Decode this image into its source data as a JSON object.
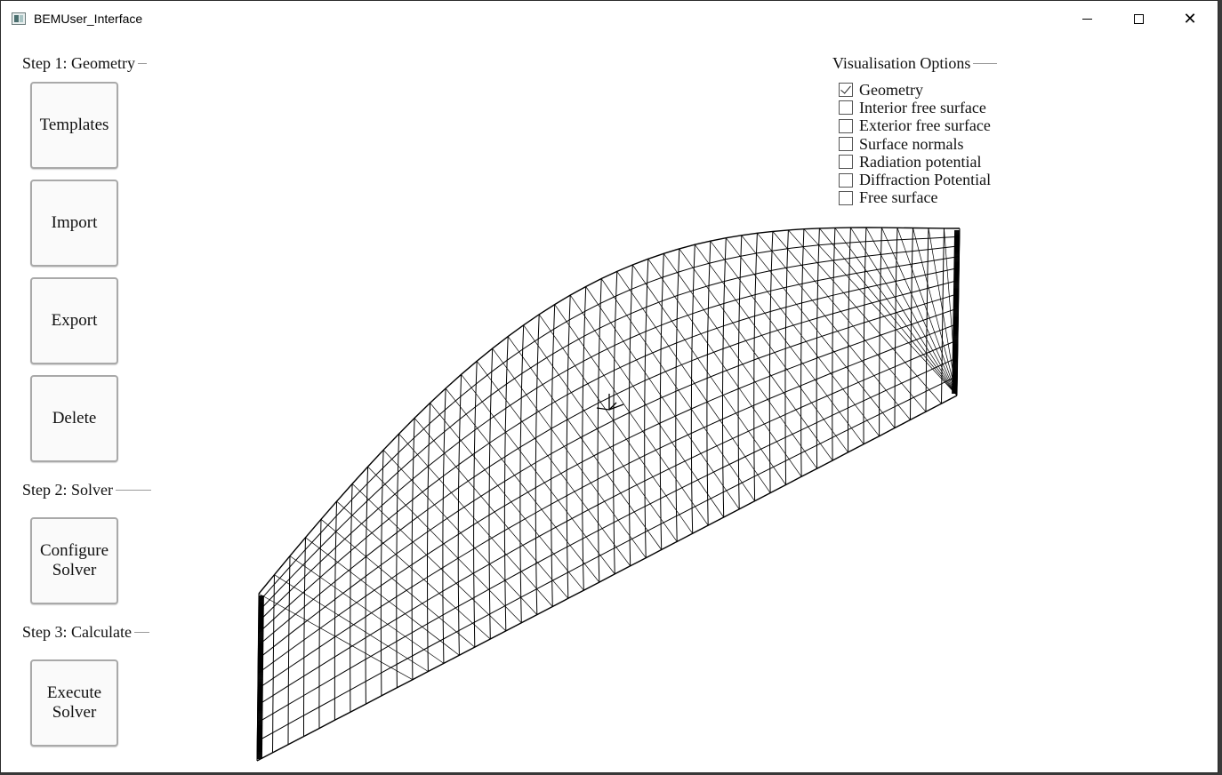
{
  "window": {
    "title": "BEMUser_Interface",
    "icon": "app-window-icon",
    "controls": {
      "minimize": "minimize-icon",
      "maximize": "maximize-icon",
      "close": "close-icon"
    }
  },
  "step1": {
    "header": "Step 1: Geometry",
    "buttons": [
      {
        "label": "Templates"
      },
      {
        "label": "Import"
      },
      {
        "label": "Export"
      },
      {
        "label": "Delete"
      }
    ]
  },
  "step2": {
    "header": "Step 2: Solver",
    "buttons": [
      {
        "label": "Configure\nSolver"
      }
    ]
  },
  "step3": {
    "header": "Step 3: Calculate",
    "buttons": [
      {
        "label": "Execute\nSolver"
      }
    ]
  },
  "visualisation": {
    "header": "Visualisation Options",
    "options": [
      {
        "label": "Geometry",
        "checked": true
      },
      {
        "label": "Interior free surface",
        "checked": false
      },
      {
        "label": "Exterior free surface",
        "checked": false
      },
      {
        "label": "Surface normals",
        "checked": false
      },
      {
        "label": "Radiation potential",
        "checked": false
      },
      {
        "label": "Diffraction Potential",
        "checked": false
      },
      {
        "label": "Free surface",
        "checked": false
      }
    ]
  },
  "viewport": {
    "content": "hull-wireframe-mesh",
    "marker": "axis-origin-marker",
    "line_color": "#000000"
  }
}
